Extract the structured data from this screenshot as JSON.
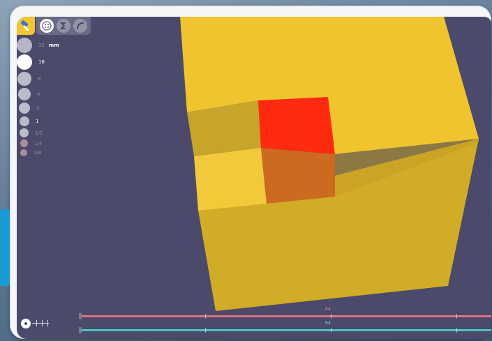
{
  "toolbar": {
    "tools": [
      {
        "name": "hammer",
        "icon": "hammer-icon",
        "active": true
      },
      {
        "name": "palette",
        "icon": "palette-icon",
        "active": true
      },
      {
        "name": "sigma",
        "icon": "sigma-icon",
        "active": false
      },
      {
        "name": "curve",
        "icon": "curve-icon",
        "active": false
      }
    ]
  },
  "scale": {
    "unit": "mm",
    "items": [
      {
        "label": "32",
        "active": false
      },
      {
        "label": "16",
        "active": true
      },
      {
        "label": "8",
        "active": false
      },
      {
        "label": "4",
        "active": false
      },
      {
        "label": "2",
        "active": false
      },
      {
        "label": "1",
        "active": false
      },
      {
        "label": "1/2",
        "active": false
      },
      {
        "label": "1/4",
        "active": false
      },
      {
        "label": "1/8",
        "active": false
      }
    ]
  },
  "sliders": {
    "red": {
      "value_label": "64",
      "color": "#e27085"
    },
    "teal": {
      "value_label": "64",
      "color": "#49c6c6"
    }
  },
  "scene": {
    "background": "#4b4a6a",
    "block_color": "#f2c533",
    "selected_cube_color": "#ff2a10"
  }
}
